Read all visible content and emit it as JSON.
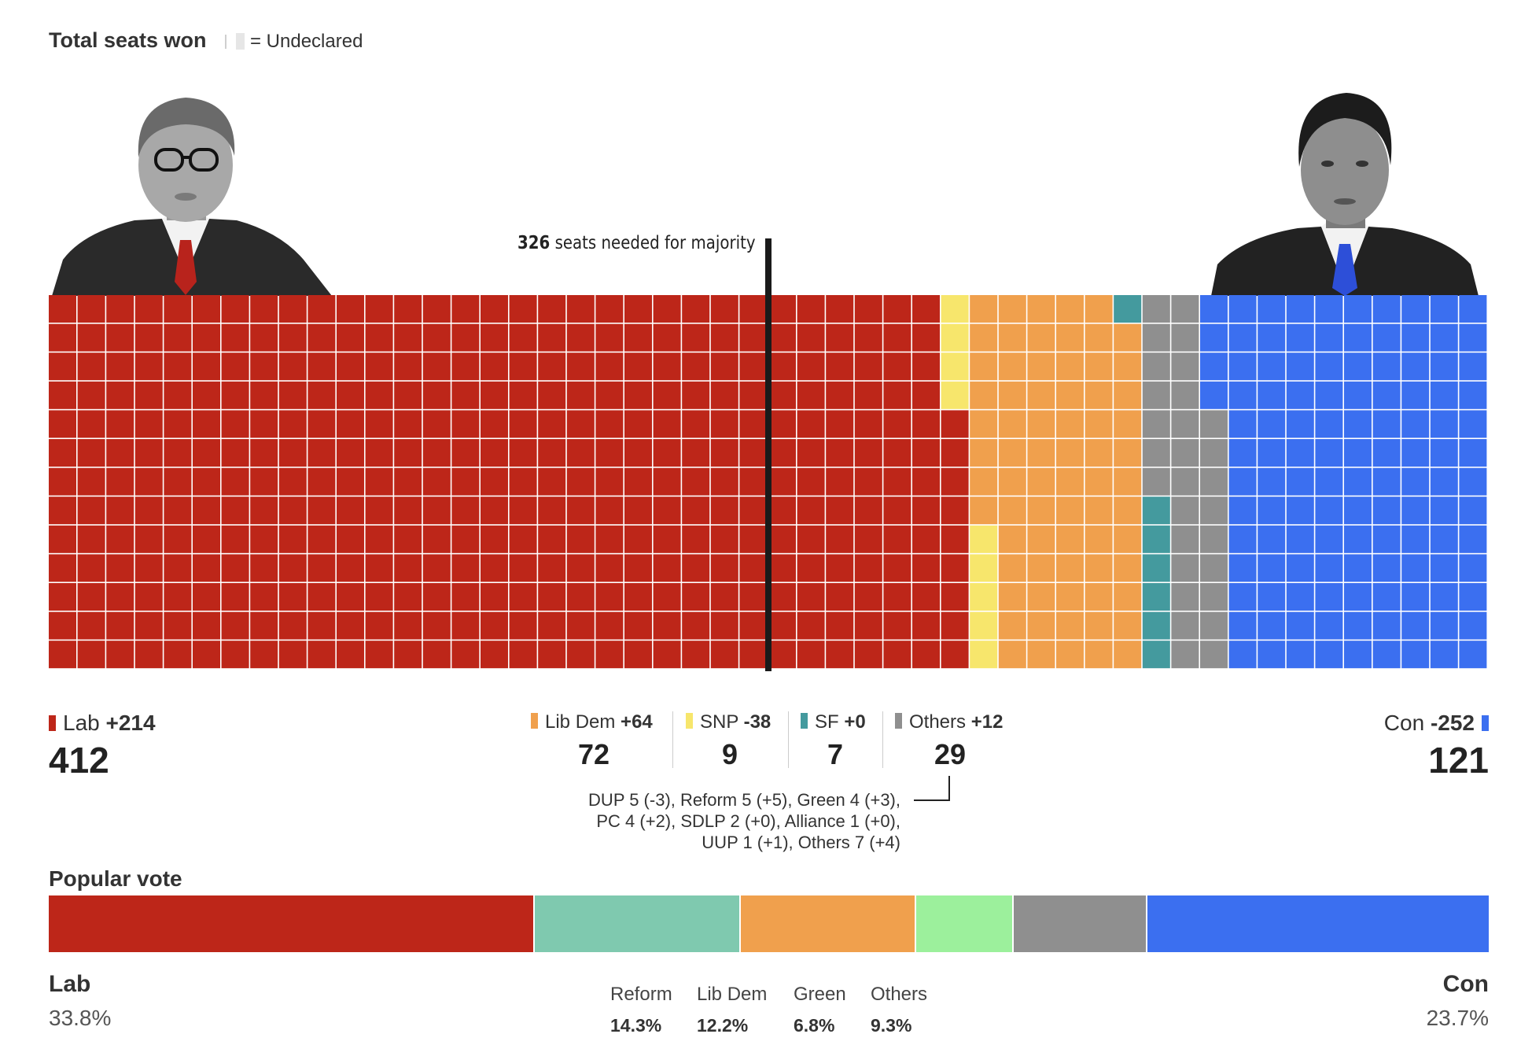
{
  "header": {
    "title": "Total seats won",
    "undeclared_label": "= Undeclared"
  },
  "majority": {
    "number": "326",
    "text": " seats needed for majority"
  },
  "colors": {
    "Lab": "#bd2619",
    "LibDem": "#f0a04d",
    "SNP": "#f7e66c",
    "SF": "#449a9e",
    "Others": "#8f8f8f",
    "Con": "#3b6ff0",
    "Undeclared": "#e6e6e6",
    "Reform": "#7fc9af",
    "Green": "#9cf09c"
  },
  "chart_data": [
    {
      "type": "waffle",
      "title": "Total seats won",
      "rows": 13,
      "seat_fill_order": "columns left to right, each column filled bottom to top",
      "series": [
        {
          "name": "Lab",
          "value": 412,
          "change": "+214"
        },
        {
          "name": "SNP",
          "value": 9,
          "change": "-38"
        },
        {
          "name": "Lib Dem",
          "value": 72,
          "change": "+64"
        },
        {
          "name": "SF",
          "value": 7,
          "change": "+0"
        },
        {
          "name": "Others",
          "value": 29,
          "change": "+12"
        },
        {
          "name": "Con",
          "value": 121,
          "change": "-252"
        }
      ],
      "majority_line": 326
    },
    {
      "type": "stacked-bar",
      "title": "Popular vote",
      "series": [
        {
          "name": "Lab",
          "value": 33.8
        },
        {
          "name": "Reform",
          "value": 14.3
        },
        {
          "name": "Lib Dem",
          "value": 12.2
        },
        {
          "name": "Green",
          "value": 6.8
        },
        {
          "name": "Others",
          "value": 9.3
        },
        {
          "name": "Con",
          "value": 23.7
        }
      ]
    }
  ],
  "seat_legend": {
    "lab": {
      "name": "Lab",
      "change": "+214",
      "seats": "412"
    },
    "libdem": {
      "name": "Lib Dem",
      "change": "+64",
      "seats": "72"
    },
    "snp": {
      "name": "SNP",
      "change": "-38",
      "seats": "9"
    },
    "sf": {
      "name": "SF",
      "change": "+0",
      "seats": "7"
    },
    "others": {
      "name": "Others",
      "change": "+12",
      "seats": "29"
    },
    "con": {
      "name": "Con",
      "change": "-252",
      "seats": "121"
    }
  },
  "others_breakdown": [
    "DUP 5 (-3), Reform 5 (+5), Green 4 (+3),",
    "PC 4 (+2), SDLP 2 (+0), Alliance 1 (+0),",
    "UUP 1 (+1), Others 7 (+4)"
  ],
  "popular_vote": {
    "title": "Popular vote",
    "lab": {
      "name": "Lab",
      "pct": "33.8%"
    },
    "con": {
      "name": "Con",
      "pct": "23.7%"
    },
    "reform": {
      "name": "Reform",
      "pct": "14.3%"
    },
    "libdem": {
      "name": "Lib Dem",
      "pct": "12.2%"
    },
    "green": {
      "name": "Green",
      "pct": "6.8%"
    },
    "others": {
      "name": "Others",
      "pct": "9.3%"
    }
  }
}
